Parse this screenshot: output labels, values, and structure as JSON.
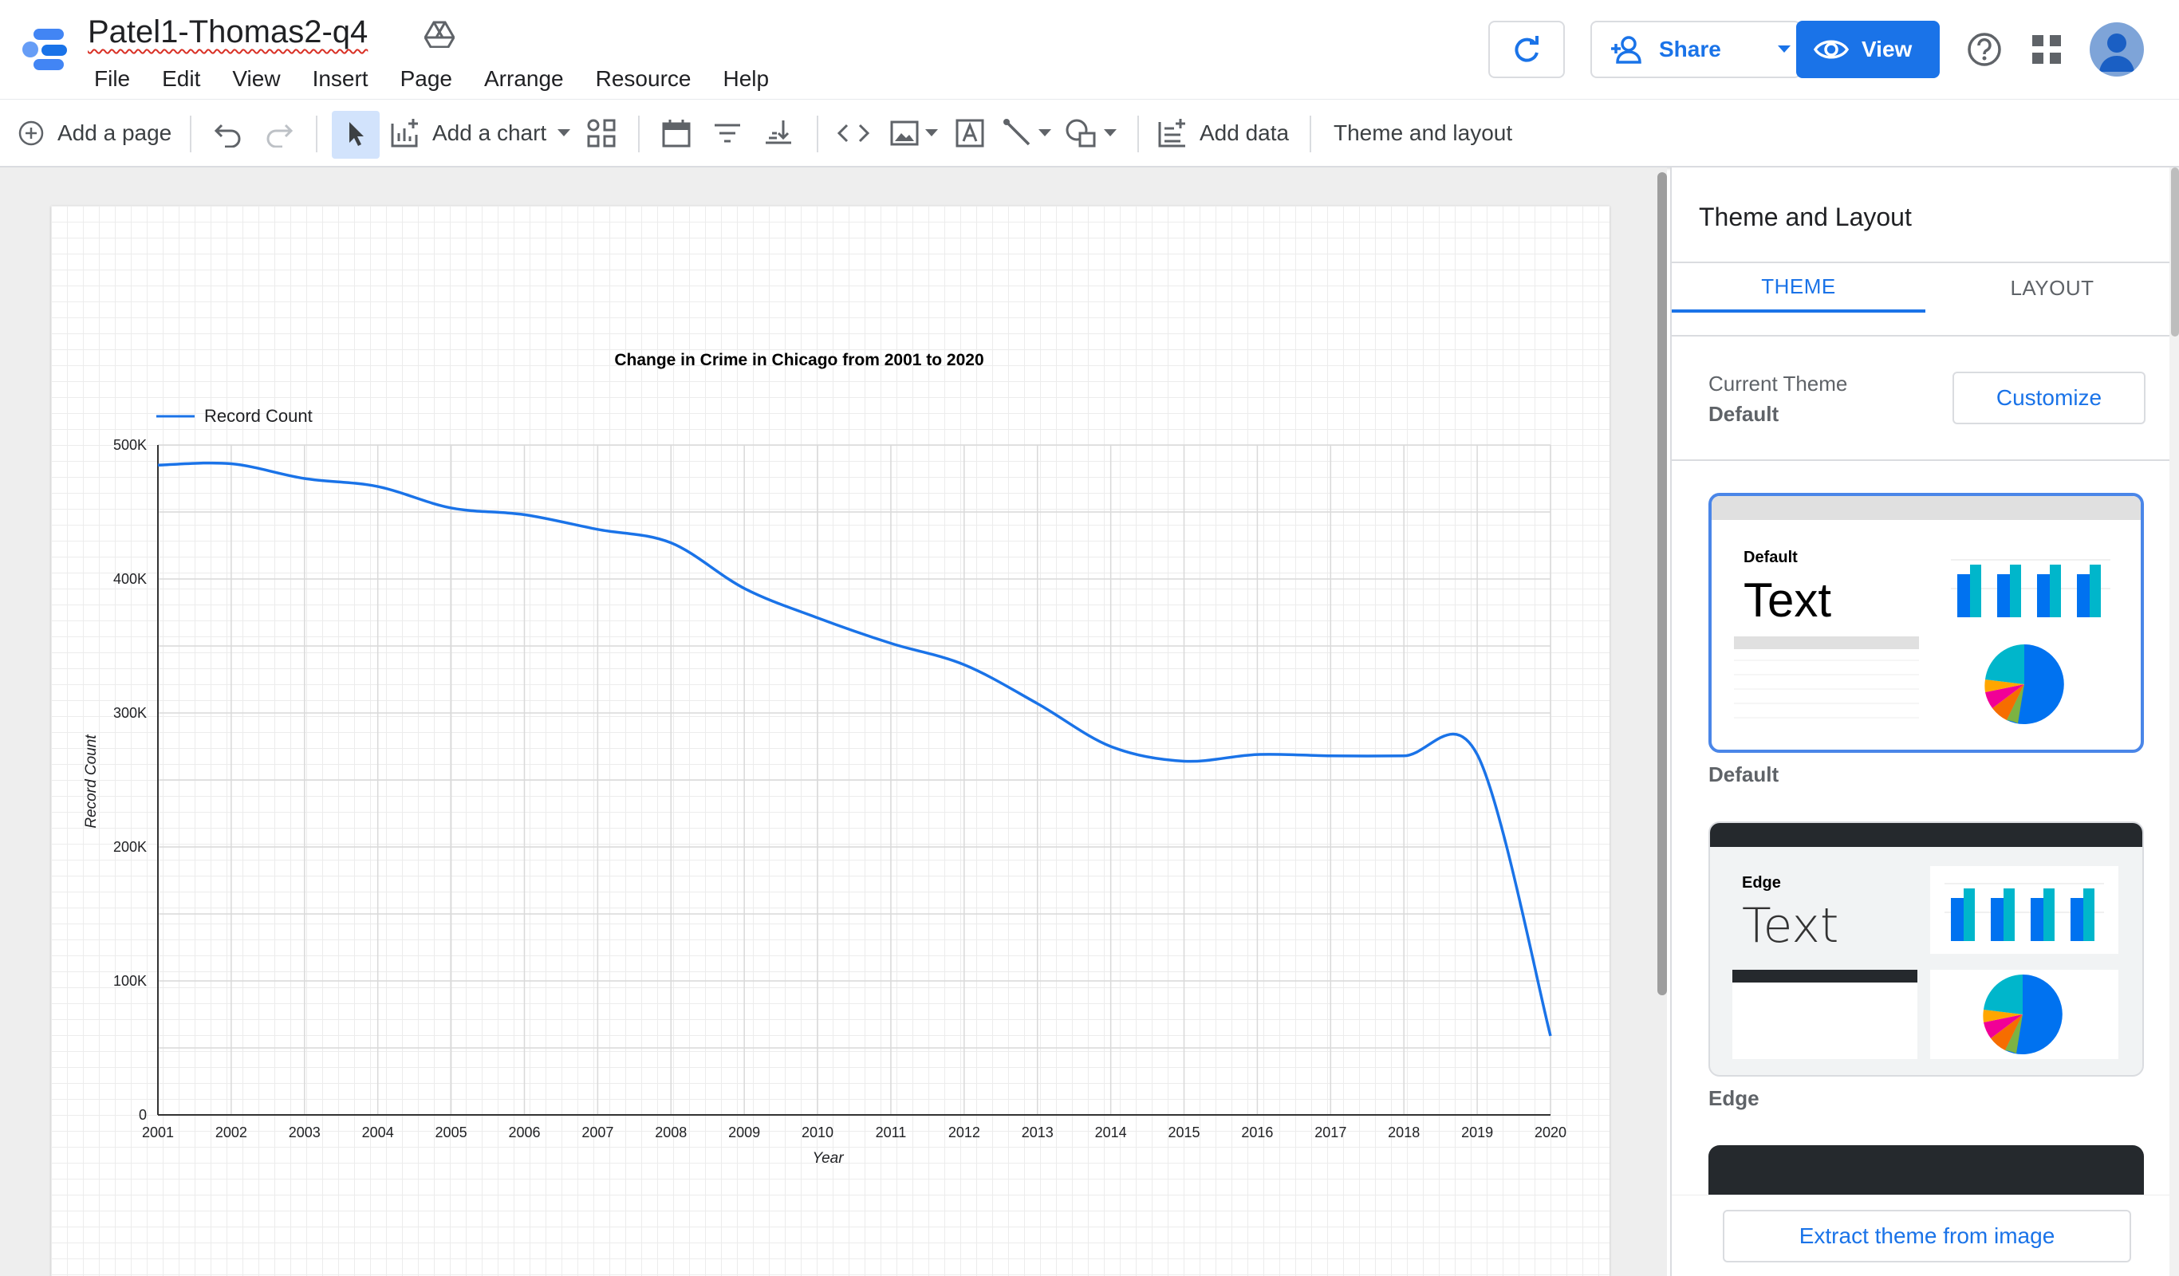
{
  "doc": {
    "title": "Patel1-Thomas2-q4"
  },
  "menu": [
    "File",
    "Edit",
    "View",
    "Insert",
    "Page",
    "Arrange",
    "Resource",
    "Help"
  ],
  "header": {
    "share_label": "Share",
    "view_label": "View"
  },
  "toolbar": {
    "add_page": "Add a page",
    "add_chart": "Add a chart",
    "add_data": "Add data",
    "theme_layout": "Theme and layout"
  },
  "panel": {
    "title": "Theme and Layout",
    "tabs": [
      "THEME",
      "LAYOUT"
    ],
    "current_theme_label": "Current Theme",
    "current_theme_value": "Default",
    "customize_label": "Customize",
    "themes": [
      {
        "name": "Default",
        "heading": "Default",
        "sample": "Text"
      },
      {
        "name": "Edge",
        "heading": "Edge",
        "sample": "Text"
      }
    ],
    "extract_label": "Extract theme from image"
  },
  "colors": {
    "accent": "#1a73e8",
    "line": "#1a73e8",
    "edge_dark": "#25292d"
  },
  "chart_data": {
    "type": "line",
    "title": "Change in Crime in Chicago from 2001 to 2020",
    "xlabel": "Year",
    "ylabel": "Record Count",
    "legend_position": "top-left",
    "grid": true,
    "categories": [
      "2001",
      "2002",
      "2003",
      "2004",
      "2005",
      "2006",
      "2007",
      "2008",
      "2009",
      "2010",
      "2011",
      "2012",
      "2013",
      "2014",
      "2015",
      "2016",
      "2017",
      "2018",
      "2019",
      "2020"
    ],
    "ylim": [
      0,
      500000
    ],
    "yticks": [
      0,
      100000,
      200000,
      300000,
      400000,
      500000
    ],
    "ytick_labels": [
      "0",
      "100K",
      "200K",
      "300K",
      "400K",
      "500K"
    ],
    "series": [
      {
        "name": "Record Count",
        "values": [
          485000,
          486000,
          475000,
          469000,
          453000,
          448000,
          437000,
          427000,
          393000,
          371000,
          352000,
          336000,
          307000,
          275000,
          264000,
          269000,
          268000,
          268000,
          269000,
          59000
        ]
      }
    ]
  }
}
